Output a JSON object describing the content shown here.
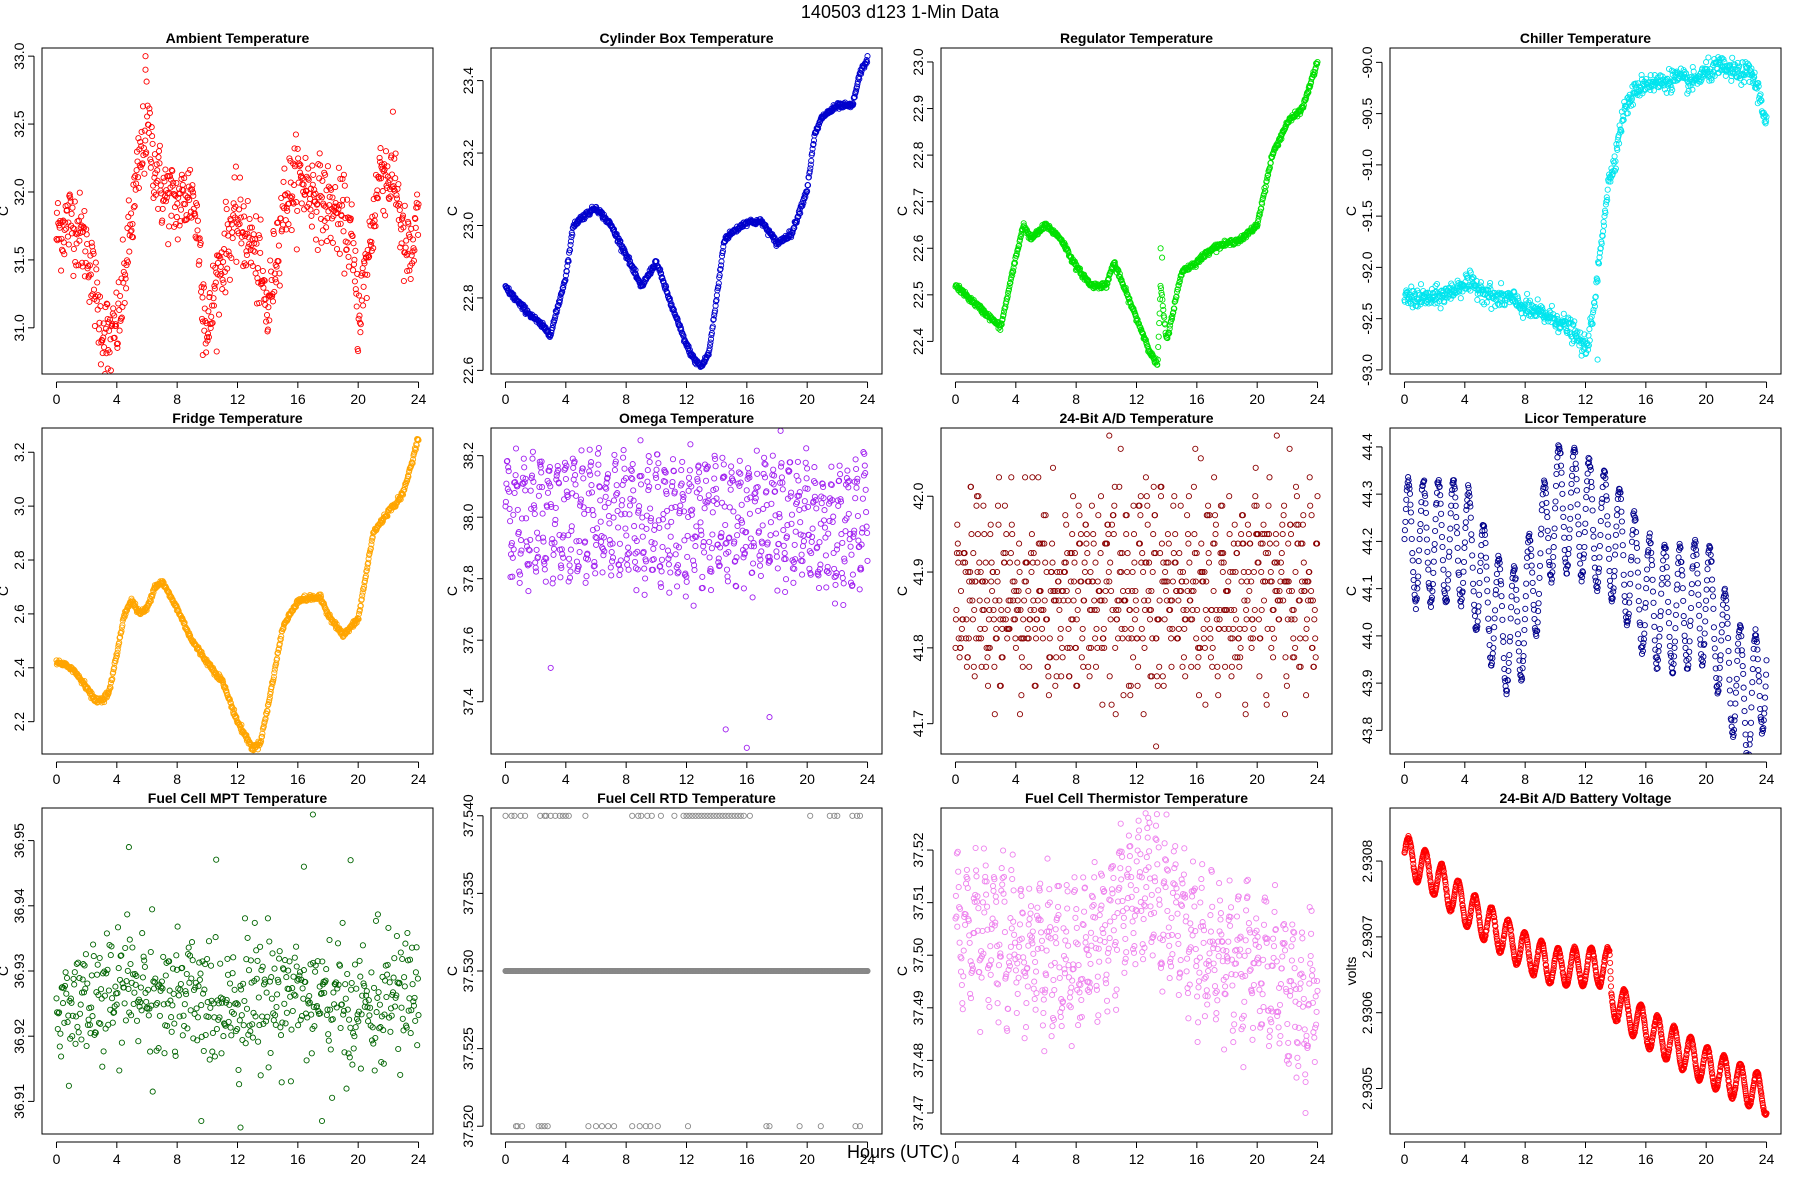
{
  "figure": {
    "title": "140503   d123   1-Min Data",
    "xlabel": "Hours (UTC)"
  },
  "chart_data": [
    {
      "type": "scatter",
      "title": "Ambient Temperature",
      "ylabel": "C",
      "color": "#ff0000",
      "xlim": [
        -0.96,
        24.96
      ],
      "ylim": [
        30.66,
        33.06
      ],
      "xticks": [
        0,
        4,
        8,
        12,
        16,
        20,
        24
      ],
      "yticks": [
        31.0,
        31.5,
        32.0,
        32.5,
        33.0
      ],
      "ytick_labels": [
        "31.0",
        "31.5",
        "32.0",
        "32.5",
        "33.0"
      ],
      "kx": [
        0,
        1,
        2,
        2.5,
        3,
        3.7,
        4.2,
        5,
        5.5,
        6,
        6.5,
        7,
        8,
        9,
        9.5,
        10,
        10.5,
        11.5,
        12,
        12.5,
        13,
        13.5,
        14,
        14.5,
        15,
        16,
        17,
        18,
        19,
        19.5,
        20,
        20.5,
        21,
        21.5,
        22,
        22.5,
        23,
        23.5,
        24
      ],
      "ky": [
        31.7,
        31.8,
        31.6,
        31.3,
        31.0,
        30.9,
        31.1,
        31.8,
        32.2,
        32.5,
        32.2,
        32.0,
        31.9,
        32.0,
        31.6,
        30.9,
        31.3,
        31.7,
        31.8,
        31.7,
        31.6,
        31.4,
        31.1,
        31.5,
        31.9,
        32.1,
        32.0,
        31.9,
        31.8,
        31.7,
        31.1,
        31.4,
        31.8,
        32.2,
        32.1,
        32.1,
        31.6,
        31.5,
        31.8
      ],
      "noise": 0.15,
      "density": 1.0,
      "outliers": [
        [
          5.9,
          33.0
        ],
        [
          5.9,
          32.9
        ],
        [
          9.7,
          30.8
        ],
        [
          3.4,
          30.7
        ]
      ]
    },
    {
      "type": "scatter",
      "title": "Cylinder Box Temperature",
      "ylabel": "C",
      "color": "#0000cc",
      "xlim": [
        -0.96,
        24.96
      ],
      "ylim": [
        22.59,
        23.49
      ],
      "xticks": [
        0,
        4,
        8,
        12,
        16,
        20,
        24
      ],
      "yticks": [
        22.6,
        22.8,
        23.0,
        23.2,
        23.4
      ],
      "ytick_labels": [
        "22.6",
        "22.8",
        "23.0",
        "23.2",
        "23.4"
      ],
      "kx": [
        0,
        1,
        2,
        3,
        4,
        4.5,
        5,
        6,
        7,
        8,
        9,
        10,
        11,
        12,
        12.5,
        13,
        13.5,
        14,
        14.5,
        15,
        16,
        17,
        18,
        19,
        20,
        20.5,
        21,
        22,
        23,
        23.5,
        24
      ],
      "ky": [
        22.83,
        22.78,
        22.74,
        22.7,
        22.86,
        23.0,
        23.02,
        23.05,
        23.0,
        22.92,
        22.83,
        22.9,
        22.78,
        22.67,
        22.63,
        22.61,
        22.65,
        22.8,
        22.96,
        22.98,
        23.01,
        23.01,
        22.95,
        22.98,
        23.1,
        23.25,
        23.3,
        23.33,
        23.33,
        23.42,
        23.46
      ],
      "noise": 0.004,
      "density": 1.0,
      "outliers": []
    },
    {
      "type": "scatter",
      "title": "Regulator Temperature",
      "ylabel": "C",
      "color": "#00e000",
      "xlim": [
        -0.96,
        24.96
      ],
      "ylim": [
        22.33,
        23.03
      ],
      "xticks": [
        0,
        4,
        8,
        12,
        16,
        20,
        24
      ],
      "yticks": [
        22.4,
        22.5,
        22.6,
        22.7,
        22.8,
        22.9,
        23.0
      ],
      "ytick_labels": [
        "22.4",
        "22.5",
        "22.6",
        "22.7",
        "22.8",
        "22.9",
        "23.0"
      ],
      "kx": [
        0,
        1,
        2,
        3,
        4,
        4.5,
        5,
        6,
        7,
        8,
        9,
        10,
        10.5,
        11,
        12,
        13,
        13.4,
        13.6,
        14,
        15,
        16,
        17,
        18,
        19,
        20,
        21,
        22,
        23,
        24
      ],
      "ky": [
        22.52,
        22.49,
        22.46,
        22.43,
        22.58,
        22.65,
        22.62,
        22.65,
        22.62,
        22.56,
        22.52,
        22.52,
        22.57,
        22.53,
        22.45,
        22.37,
        22.35,
        22.52,
        22.4,
        22.55,
        22.57,
        22.6,
        22.61,
        22.62,
        22.65,
        22.8,
        22.87,
        22.9,
        23.0
      ],
      "noise": 0.003,
      "density": 1.0,
      "outliers": [
        [
          13.6,
          22.6
        ],
        [
          13.7,
          22.58
        ]
      ]
    },
    {
      "type": "scatter",
      "title": "Chiller Temperature",
      "ylabel": "C",
      "color": "#00e5ee",
      "xlim": [
        -0.96,
        24.96
      ],
      "ylim": [
        -93.04,
        -89.86
      ],
      "xticks": [
        0,
        4,
        8,
        12,
        16,
        20,
        24
      ],
      "yticks": [
        -93.0,
        -92.5,
        -92.0,
        -91.5,
        -91.0,
        -90.5,
        -90.0
      ],
      "ytick_labels": [
        "-93.0",
        "-92.5",
        "-92.0",
        "-91.5",
        "-91.0",
        "-90.5",
        "-90.0"
      ],
      "kx": [
        0,
        2,
        3,
        4,
        5,
        6,
        7,
        8,
        9,
        10,
        11,
        11.5,
        12,
        12.5,
        13,
        13.5,
        14,
        14.5,
        15,
        15.5,
        16,
        17,
        18,
        19,
        20,
        21,
        22,
        23,
        23.5,
        24
      ],
      "ky": [
        -92.3,
        -92.3,
        -92.25,
        -92.15,
        -92.2,
        -92.3,
        -92.3,
        -92.4,
        -92.45,
        -92.5,
        -92.6,
        -92.7,
        -92.8,
        -92.5,
        -91.8,
        -91.2,
        -90.9,
        -90.5,
        -90.35,
        -90.25,
        -90.2,
        -90.2,
        -90.15,
        -90.2,
        -90.1,
        -90.05,
        -90.1,
        -90.1,
        -90.3,
        -90.6
      ],
      "noise": 0.05,
      "density": 1.0,
      "outliers": [
        [
          12.8,
          -92.9
        ],
        [
          20.8,
          -89.95
        ]
      ]
    },
    {
      "type": "scatter",
      "title": "Fridge Temperature",
      "ylabel": "C",
      "color": "#ffa500",
      "xlim": [
        -0.96,
        24.96
      ],
      "ylim": [
        2.08,
        3.29
      ],
      "xticks": [
        0,
        4,
        8,
        12,
        16,
        20,
        24
      ],
      "yticks": [
        2.2,
        2.4,
        2.6,
        2.8,
        3.0,
        3.2
      ],
      "ytick_labels": [
        "2.2",
        "2.4",
        "2.6",
        "2.8",
        "3.0",
        "3.2"
      ],
      "kx": [
        0,
        1,
        2,
        2.5,
        3,
        3.5,
        4,
        4.5,
        5,
        5.5,
        6,
        6.5,
        7,
        8,
        9,
        10,
        11,
        12,
        13,
        13.5,
        14,
        15,
        16,
        17,
        17.5,
        18,
        19,
        20,
        21,
        22,
        22.5,
        23,
        23.5,
        24
      ],
      "ky": [
        2.42,
        2.4,
        2.33,
        2.28,
        2.28,
        2.31,
        2.45,
        2.6,
        2.65,
        2.6,
        2.62,
        2.7,
        2.72,
        2.62,
        2.5,
        2.42,
        2.35,
        2.2,
        2.1,
        2.12,
        2.25,
        2.55,
        2.65,
        2.66,
        2.66,
        2.6,
        2.52,
        2.58,
        2.9,
        2.98,
        3.01,
        3.05,
        3.15,
        3.26
      ],
      "noise": 0.005,
      "density": 1.0,
      "outliers": []
    },
    {
      "type": "scatter",
      "title": "Omega Temperature",
      "ylabel": "C",
      "color": "#a020f0",
      "xlim": [
        -0.96,
        24.96
      ],
      "ylim": [
        37.23,
        38.29
      ],
      "xticks": [
        0,
        4,
        8,
        12,
        16,
        20,
        24
      ],
      "yticks": [
        37.4,
        37.6,
        37.8,
        38.0,
        38.2
      ],
      "ytick_labels": [
        "37.4",
        "37.6",
        "37.8",
        "38.0",
        "38.2"
      ],
      "kx": [
        0,
        6,
        12,
        18,
        22,
        24
      ],
      "ky": [
        38.0,
        38.0,
        37.98,
        38.0,
        37.95,
        38.0
      ],
      "osc_amp": 0.17,
      "osc_period": 0.55,
      "noise": 0.04,
      "density": 1.0,
      "outliers": [
        [
          3.0,
          37.51
        ],
        [
          14.6,
          37.31
        ],
        [
          16.0,
          37.25
        ],
        [
          17.5,
          37.35
        ]
      ]
    },
    {
      "type": "scatter",
      "title": "24-Bit A/D Temperature",
      "ylabel": "C",
      "color": "#8b0000",
      "xlim": [
        -0.96,
        24.96
      ],
      "ylim": [
        41.66,
        42.09
      ],
      "xticks": [
        0,
        4,
        8,
        12,
        16,
        20,
        24
      ],
      "yticks": [
        41.7,
        41.8,
        41.9,
        42.0
      ],
      "ytick_labels": [
        "41.7",
        "41.8",
        "41.9",
        "42.0"
      ],
      "kx": [
        0,
        24
      ],
      "ky": [
        41.87,
        41.88
      ],
      "osc_amp": 0.07,
      "osc_period": 0.45,
      "noise": 0.05,
      "quant": 0.0125,
      "density": 1.0,
      "outliers": [
        [
          13.3,
          41.67
        ],
        [
          10.2,
          42.08
        ],
        [
          21.3,
          42.08
        ]
      ]
    },
    {
      "type": "scatter",
      "title": "Licor Temperature",
      "ylabel": "C",
      "color": "#00008b",
      "xlim": [
        -0.96,
        24.96
      ],
      "ylim": [
        43.75,
        44.44
      ],
      "xticks": [
        0,
        4,
        8,
        12,
        16,
        20,
        24
      ],
      "yticks": [
        43.8,
        43.9,
        44.0,
        44.1,
        44.2,
        44.3,
        44.4
      ],
      "ytick_labels": [
        "43.8",
        "43.9",
        "44.0",
        "44.1",
        "44.2",
        "44.3",
        "44.4"
      ],
      "kx": [
        0,
        2,
        4,
        6,
        7,
        8,
        10,
        12,
        14,
        16,
        18,
        20,
        22,
        23,
        24
      ],
      "ky": [
        44.2,
        44.2,
        44.2,
        44.05,
        44.0,
        44.05,
        44.28,
        44.25,
        44.2,
        44.08,
        44.05,
        44.08,
        43.9,
        43.85,
        43.95
      ],
      "osc_amp": 0.13,
      "osc_period": 1.0,
      "noise": 0.005,
      "density": 1.0,
      "outliers": []
    },
    {
      "type": "scatter",
      "title": "Fuel Cell MPT Temperature",
      "ylabel": "C",
      "color": "#006400",
      "xlim": [
        -0.96,
        24.96
      ],
      "ylim": [
        36.905,
        36.955
      ],
      "xticks": [
        0,
        4,
        8,
        12,
        16,
        20,
        24
      ],
      "yticks": [
        36.91,
        36.92,
        36.93,
        36.94,
        36.95
      ],
      "ytick_labels": [
        "36.91",
        "36.92",
        "36.93",
        "36.94",
        "36.95"
      ],
      "kx": [
        0,
        4,
        5,
        8,
        12,
        16,
        17,
        20,
        24
      ],
      "ky": [
        36.924,
        36.926,
        36.928,
        36.925,
        36.926,
        36.927,
        36.925,
        36.924,
        36.927
      ],
      "noise": 0.005,
      "density": 0.7,
      "outliers": [
        [
          17.0,
          36.954
        ],
        [
          4.8,
          36.949
        ],
        [
          16.4,
          36.946
        ],
        [
          19.5,
          36.947
        ],
        [
          9.6,
          36.907
        ],
        [
          12.2,
          36.906
        ],
        [
          17.6,
          36.907
        ]
      ]
    },
    {
      "type": "scatter",
      "title": "Fuel Cell RTD Temperature",
      "ylabel": "C",
      "color": "#888888",
      "xlim": [
        -0.96,
        24.96
      ],
      "ylim": [
        37.5195,
        37.5405
      ],
      "xticks": [
        0,
        4,
        8,
        12,
        16,
        20,
        24
      ],
      "yticks": [
        37.52,
        37.525,
        37.53,
        37.535,
        37.54
      ],
      "ytick_labels": [
        "37.520",
        "37.525",
        "37.530",
        "37.535",
        "37.540"
      ],
      "kx": [
        0,
        24
      ],
      "ky": [
        37.53,
        37.53
      ],
      "noise": 0,
      "density": 2.0,
      "levels": {
        "top": 37.54,
        "top_x": [
          0,
          0.4,
          0.6,
          1.0,
          1.3,
          2.3,
          2.6,
          2.7,
          3.0,
          3.3,
          3.6,
          3.8,
          4.0,
          4.2,
          5.3,
          8.4,
          8.8,
          9.0,
          9.4,
          9.7,
          10.3,
          11.2,
          11.8,
          12.0,
          12.2,
          12.4,
          12.6,
          12.8,
          13.0,
          13.2,
          13.4,
          13.6,
          13.8,
          14.0,
          14.2,
          14.4,
          14.6,
          14.8,
          15.0,
          15.2,
          15.4,
          15.6,
          15.8,
          16.2,
          20.2,
          21.5,
          21.8,
          22.0,
          23.0,
          23.3,
          23.5
        ],
        "bot": 37.52,
        "bot_x": [
          0.7,
          0.8,
          1.1,
          2.2,
          2.4,
          2.6,
          2.8,
          5.5,
          6.0,
          6.4,
          6.8,
          7.2,
          8.4,
          8.9,
          9.3,
          9.6,
          10.1,
          12.1,
          17.3,
          17.5,
          19.5,
          20.9,
          23.2,
          23.5
        ]
      },
      "outliers": []
    },
    {
      "type": "scatter",
      "title": "Fuel Cell Thermistor Temperature",
      "ylabel": "C",
      "color": "#ee82ee",
      "xlim": [
        -0.96,
        24.96
      ],
      "ylim": [
        37.466,
        37.528
      ],
      "xticks": [
        0,
        4,
        8,
        12,
        16,
        20,
        24
      ],
      "yticks": [
        37.47,
        37.48,
        37.49,
        37.5,
        37.51,
        37.52
      ],
      "ytick_labels": [
        "37.47",
        "37.48",
        "37.49",
        "37.50",
        "37.51",
        "37.52"
      ],
      "kx": [
        0,
        4,
        8,
        10,
        12,
        13,
        16,
        20,
        22,
        23,
        24
      ],
      "ky": [
        37.505,
        37.502,
        37.498,
        37.505,
        37.513,
        37.514,
        37.502,
        37.498,
        37.495,
        37.49,
        37.495
      ],
      "osc_amp": 0.01,
      "osc_period": 0.6,
      "noise": 0.004,
      "density": 1.0,
      "outliers": [
        [
          23.2,
          37.47
        ],
        [
          12.6,
          37.527
        ]
      ]
    },
    {
      "type": "scatter",
      "title": "24-Bit A/D Battery Voltage",
      "ylabel": "volts",
      "color": "#ff0000",
      "xlim": [
        -0.96,
        24.96
      ],
      "ylim": [
        2.93044,
        2.93087
      ],
      "xticks": [
        0,
        4,
        8,
        12,
        16,
        20,
        24
      ],
      "yticks": [
        2.9305,
        2.9306,
        2.9307,
        2.9308
      ],
      "ytick_labels": [
        "2.9305",
        "2.9306",
        "2.9307",
        "2.9308"
      ],
      "kx": [
        0,
        2,
        4,
        6,
        8,
        10,
        12,
        13.6,
        13.7,
        16,
        20,
        22,
        24
      ],
      "ky": [
        2.93081,
        2.93078,
        2.93074,
        2.93071,
        2.93068,
        2.93066,
        2.93066,
        2.93066,
        2.93062,
        2.93058,
        2.93053,
        2.93051,
        2.93049
      ],
      "osc_amp": 2.5e-05,
      "osc_period": 1.1,
      "noise": 8e-07,
      "density": 1.5,
      "outliers": []
    }
  ]
}
